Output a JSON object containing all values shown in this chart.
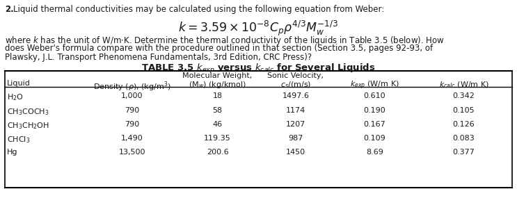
{
  "liquids_display": [
    "H$_2$O",
    "CH$_3$COCH$_3$",
    "CH$_3$CH$_2$OH",
    "CHCl$_3$",
    "Hg"
  ],
  "density": [
    "1,000",
    "790",
    "790",
    "1,490",
    "13,500"
  ],
  "mol_weight": [
    "18",
    "58",
    "46",
    "119.35",
    "200.6"
  ],
  "sonic_vel": [
    "1497.6",
    "1174",
    "1207",
    "987",
    "1450"
  ],
  "k_exp": [
    "0.610",
    "0.190",
    "0.167",
    "0.109",
    "8.69"
  ],
  "k_calc": [
    "0.342",
    "0.105",
    "0.126",
    "0.083",
    "0.377"
  ],
  "bg_color": "#ffffff",
  "text_color": "#1a1a1a",
  "font_family": "DejaVu Sans"
}
